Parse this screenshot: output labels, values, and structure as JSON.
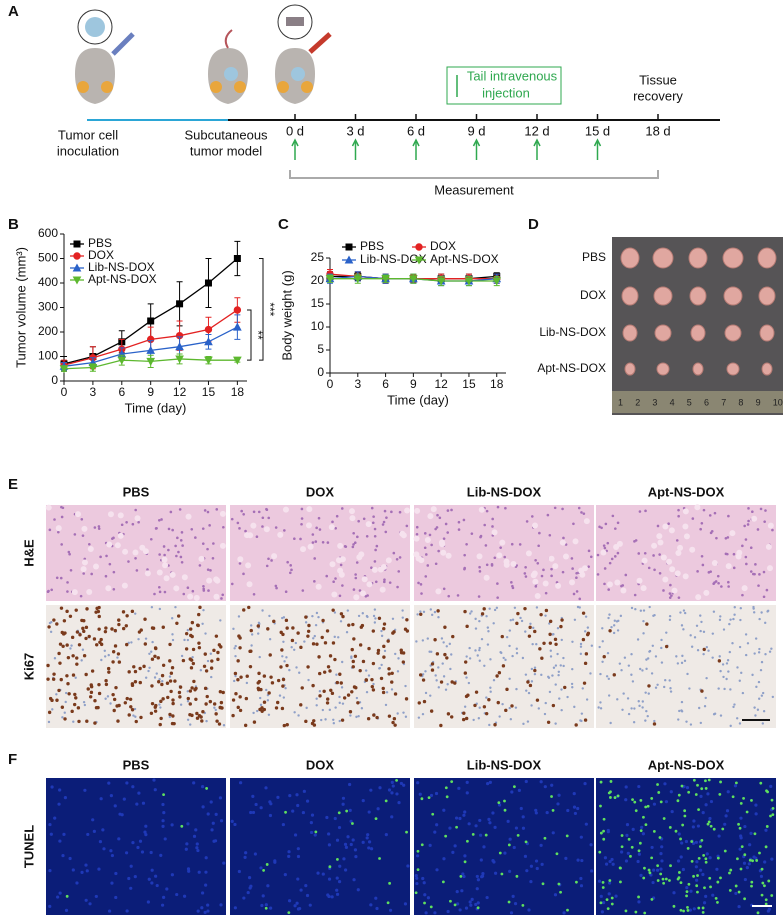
{
  "panel_a": {
    "label": "A",
    "stages": [
      [
        "Tumor cell",
        "inoculation"
      ],
      [
        "Subcutaneous",
        "tumor model"
      ]
    ],
    "days": [
      "0 d",
      "3 d",
      "6 d",
      "9 d",
      "12 d",
      "15 d",
      "18 d"
    ],
    "injection": [
      "Tail intravenous",
      "injection"
    ],
    "endpoint": [
      "Tissue",
      "recovery"
    ],
    "measurement": "Measurement"
  },
  "chart_data": [
    {
      "panel": "B",
      "type": "line",
      "xlabel": "Time (day)",
      "ylabel": "Tumor volume (mm³)",
      "x": [
        0,
        3,
        6,
        9,
        12,
        15,
        18
      ],
      "xlim": [
        0,
        19
      ],
      "xticks": [
        0,
        3,
        6,
        9,
        12,
        15,
        18
      ],
      "ylim": [
        0,
        600
      ],
      "yticks": [
        0,
        100,
        200,
        300,
        400,
        500,
        600
      ],
      "legend_columns": 1,
      "series": [
        {
          "name": "PBS",
          "color": "#000000",
          "marker": "s",
          "values": [
            70,
            100,
            160,
            245,
            315,
            400,
            500
          ],
          "errors": [
            30,
            40,
            45,
            70,
            90,
            100,
            70
          ]
        },
        {
          "name": "DOX",
          "color": "#e32222",
          "marker": "o",
          "values": [
            65,
            95,
            130,
            170,
            185,
            210,
            290
          ],
          "errors": [
            20,
            45,
            40,
            50,
            60,
            50,
            50
          ]
        },
        {
          "name": "Lib-NS-DOX",
          "color": "#2a62c9",
          "marker": "^",
          "values": [
            60,
            75,
            110,
            125,
            140,
            160,
            220
          ],
          "errors": [
            15,
            20,
            25,
            40,
            40,
            30,
            50
          ]
        },
        {
          "name": "Apt-NS-DOX",
          "color": "#5db82f",
          "marker": "v",
          "values": [
            50,
            55,
            85,
            80,
            90,
            85,
            85
          ],
          "errors": [
            10,
            15,
            20,
            25,
            20,
            15,
            8
          ]
        }
      ],
      "annotations": [
        "***",
        "**"
      ]
    },
    {
      "panel": "C",
      "type": "line",
      "xlabel": "Time (day)",
      "ylabel": "Body weight (g)",
      "x": [
        0,
        3,
        6,
        9,
        12,
        15,
        18
      ],
      "xlim": [
        0,
        19
      ],
      "xticks": [
        0,
        3,
        6,
        9,
        12,
        15,
        18
      ],
      "ylim": [
        0,
        25
      ],
      "yticks": [
        0,
        5,
        10,
        15,
        20,
        25
      ],
      "legend_columns": 2,
      "series": [
        {
          "name": "PBS",
          "color": "#000000",
          "marker": "s",
          "values": [
            21,
            21,
            20.5,
            20.5,
            20.5,
            20.5,
            21
          ],
          "errors": [
            1,
            0.8,
            1,
            0.8,
            1,
            1,
            0.8
          ]
        },
        {
          "name": "DOX",
          "color": "#e32222",
          "marker": "o",
          "values": [
            21.5,
            21,
            20.5,
            20.5,
            20.5,
            20.5,
            20.5
          ],
          "errors": [
            1,
            1,
            1,
            0.8,
            1,
            1,
            1
          ]
        },
        {
          "name": "Lib-NS-DOX",
          "color": "#2a62c9",
          "marker": "^",
          "values": [
            20.5,
            21,
            20.5,
            20.5,
            20,
            20,
            20.5
          ],
          "errors": [
            1,
            1,
            1,
            1,
            1,
            1,
            1
          ]
        },
        {
          "name": "Apt-NS-DOX",
          "color": "#5db82f",
          "marker": "v",
          "values": [
            20.5,
            20.5,
            20.5,
            20.5,
            20,
            20,
            20
          ],
          "errors": [
            0.8,
            1,
            0.8,
            1,
            1,
            1,
            1
          ]
        }
      ]
    }
  ],
  "panel_d": {
    "label": "D",
    "groups": [
      "PBS",
      "DOX",
      "Lib-NS-DOX",
      "Apt-NS-DOX"
    ],
    "ruler": [
      1,
      2,
      3,
      4,
      5,
      6,
      7,
      8,
      9,
      10
    ]
  },
  "panel_e": {
    "label": "E",
    "columns": [
      "PBS",
      "DOX",
      "Lib-NS-DOX",
      "Apt-NS-DOX"
    ],
    "rows": [
      "H&E",
      "Ki67"
    ]
  },
  "panel_f": {
    "label": "F",
    "columns": [
      "PBS",
      "DOX",
      "Lib-NS-DOX",
      "Apt-NS-DOX"
    ],
    "rows": [
      "TUNEL"
    ]
  }
}
